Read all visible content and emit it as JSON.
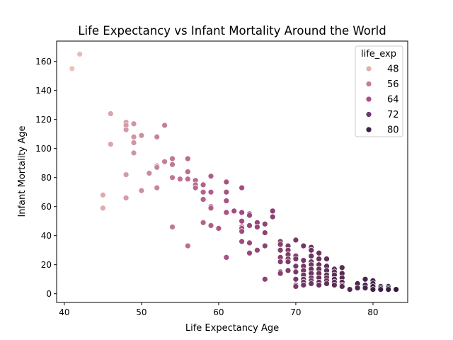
{
  "chart_data": {
    "type": "scatter",
    "title": "Life Expectancy vs Infant Mortality Around the World",
    "xlabel": "Life Expectancy Age",
    "ylabel": "Infant Mortality Age",
    "xlim": [
      39,
      84.5
    ],
    "ylim": [
      -6,
      174
    ],
    "xticks": [
      40,
      50,
      60,
      70,
      80
    ],
    "yticks": [
      0,
      20,
      40,
      60,
      80,
      100,
      120,
      140,
      160
    ],
    "grid": false,
    "hue_variable": "life_exp",
    "color_range": {
      "min": 41,
      "max": 83,
      "low_color": "#ebc1b8",
      "mid_color": "#a54d80",
      "high_color": "#2e1b3d"
    },
    "legend": {
      "title": "life_exp",
      "placement": "top-right",
      "entries": [
        {
          "label": "48",
          "color": "#e3b0ac"
        },
        {
          "label": "56",
          "color": "#c77d99"
        },
        {
          "label": "64",
          "color": "#a5508a"
        },
        {
          "label": "72",
          "color": "#6e3870"
        },
        {
          "label": "80",
          "color": "#3a2145"
        }
      ]
    },
    "points": [
      [
        41,
        155
      ],
      [
        42,
        165
      ],
      [
        45,
        68
      ],
      [
        45,
        59
      ],
      [
        46,
        124
      ],
      [
        46,
        103
      ],
      [
        48,
        118
      ],
      [
        48,
        116
      ],
      [
        48,
        113
      ],
      [
        48,
        82
      ],
      [
        48,
        66
      ],
      [
        49,
        117
      ],
      [
        49,
        108
      ],
      [
        49,
        104
      ],
      [
        49,
        97
      ],
      [
        50,
        109
      ],
      [
        50,
        71
      ],
      [
        51,
        83
      ],
      [
        52,
        108
      ],
      [
        52,
        88
      ],
      [
        52,
        87
      ],
      [
        52,
        73
      ],
      [
        53,
        116
      ],
      [
        53,
        91
      ],
      [
        54,
        93
      ],
      [
        54,
        89
      ],
      [
        54,
        80
      ],
      [
        54,
        46
      ],
      [
        55,
        79
      ],
      [
        56,
        93
      ],
      [
        56,
        84
      ],
      [
        56,
        79
      ],
      [
        56,
        33
      ],
      [
        57,
        78
      ],
      [
        57,
        75
      ],
      [
        57,
        73
      ],
      [
        58,
        75
      ],
      [
        58,
        70
      ],
      [
        58,
        65
      ],
      [
        58,
        49
      ],
      [
        59,
        81
      ],
      [
        59,
        70
      ],
      [
        59,
        60
      ],
      [
        59,
        59
      ],
      [
        59,
        47
      ],
      [
        60,
        45
      ],
      [
        61,
        77
      ],
      [
        61,
        70
      ],
      [
        61,
        64
      ],
      [
        61,
        56
      ],
      [
        61,
        25
      ],
      [
        62,
        57
      ],
      [
        63,
        73
      ],
      [
        63,
        56
      ],
      [
        63,
        50
      ],
      [
        63,
        46
      ],
      [
        63,
        45
      ],
      [
        63,
        43
      ],
      [
        63,
        36
      ],
      [
        64,
        55
      ],
      [
        64,
        54
      ],
      [
        64,
        47
      ],
      [
        64,
        35
      ],
      [
        64,
        28
      ],
      [
        65,
        49
      ],
      [
        65,
        46
      ],
      [
        65,
        30
      ],
      [
        66,
        48
      ],
      [
        66,
        42
      ],
      [
        66,
        33
      ],
      [
        66,
        10
      ],
      [
        67,
        57
      ],
      [
        67,
        53
      ],
      [
        68,
        36
      ],
      [
        68,
        34
      ],
      [
        68,
        30
      ],
      [
        68,
        25
      ],
      [
        68,
        22
      ],
      [
        68,
        15
      ],
      [
        68,
        14
      ],
      [
        69,
        33
      ],
      [
        69,
        30
      ],
      [
        69,
        27
      ],
      [
        69,
        24
      ],
      [
        69,
        22
      ],
      [
        69,
        16
      ],
      [
        70,
        37
      ],
      [
        70,
        26
      ],
      [
        70,
        24
      ],
      [
        70,
        19
      ],
      [
        70,
        15
      ],
      [
        70,
        10
      ],
      [
        70,
        6
      ],
      [
        70,
        5
      ],
      [
        71,
        33
      ],
      [
        71,
        23
      ],
      [
        71,
        19
      ],
      [
        71,
        16
      ],
      [
        71,
        13
      ],
      [
        71,
        10
      ],
      [
        71,
        8
      ],
      [
        71,
        6
      ],
      [
        72,
        32
      ],
      [
        72,
        30
      ],
      [
        72,
        26
      ],
      [
        72,
        22
      ],
      [
        72,
        20
      ],
      [
        72,
        17
      ],
      [
        72,
        14
      ],
      [
        72,
        11
      ],
      [
        72,
        9
      ],
      [
        72,
        7
      ],
      [
        73,
        28
      ],
      [
        73,
        24
      ],
      [
        73,
        20
      ],
      [
        73,
        17
      ],
      [
        73,
        14
      ],
      [
        73,
        11
      ],
      [
        73,
        8
      ],
      [
        73,
        6
      ],
      [
        74,
        24
      ],
      [
        74,
        19
      ],
      [
        74,
        16
      ],
      [
        74,
        13
      ],
      [
        74,
        11
      ],
      [
        74,
        9
      ],
      [
        74,
        7
      ],
      [
        75,
        17
      ],
      [
        75,
        15
      ],
      [
        75,
        13
      ],
      [
        75,
        10
      ],
      [
        75,
        8
      ],
      [
        75,
        6
      ],
      [
        76,
        18
      ],
      [
        76,
        14
      ],
      [
        76,
        11
      ],
      [
        76,
        8
      ],
      [
        76,
        6
      ],
      [
        76,
        5
      ],
      [
        77,
        3
      ],
      [
        78,
        7
      ],
      [
        78,
        4
      ],
      [
        79,
        10
      ],
      [
        79,
        6
      ],
      [
        79,
        4
      ],
      [
        80,
        9
      ],
      [
        80,
        7
      ],
      [
        80,
        5
      ],
      [
        80,
        3
      ],
      [
        81,
        5
      ],
      [
        81,
        4
      ],
      [
        81,
        3
      ],
      [
        82,
        5
      ],
      [
        82,
        4
      ],
      [
        82,
        3
      ],
      [
        83,
        3
      ]
    ]
  }
}
